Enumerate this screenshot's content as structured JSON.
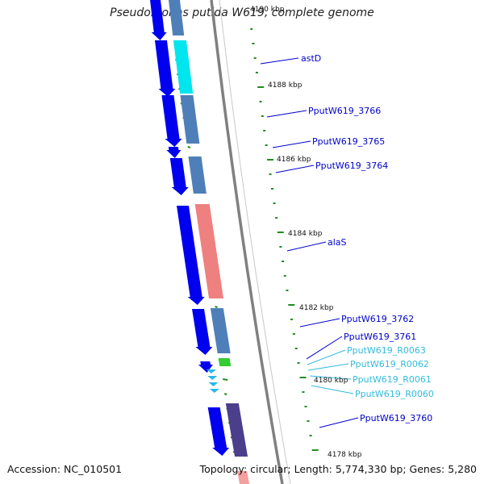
{
  "title": "Pseudomonas putida W619, complete genome",
  "accession": "Accession: NC_010501",
  "topology": "Topology: circular; Length: 5,774,330 bp; Genes: 5,280",
  "colors": {
    "backbone": "#808080",
    "cds_forward": "#0000ee",
    "tick": "#228b22",
    "label_cds": "#0000cc",
    "label_rna": "#33bbdd",
    "astD": "#00e5ee",
    "alaS": "#ef8080",
    "cog_default": "#4f7fb8",
    "cog_3760": "#4b3e8a",
    "rna_green": "#33cc33",
    "trna": "#2ab8e8"
  },
  "ruler": {
    "tick_labels": [
      "4190 kbp",
      "4188 kbp",
      "4186 kbp",
      "4184 kbp",
      "4182 kbp",
      "4180 kbp",
      "4178 kbp"
    ]
  },
  "genes": {
    "labels": [
      "astD",
      "PputW619_3766",
      "PputW619_3765",
      "PputW619_3764",
      "alaS",
      "PputW619_3762",
      "PputW619_3761",
      "PputW619_R0063",
      "PputW619_R0062",
      "PputW619_R0061",
      "PputW619_R0060",
      "PputW619_3760"
    ]
  }
}
